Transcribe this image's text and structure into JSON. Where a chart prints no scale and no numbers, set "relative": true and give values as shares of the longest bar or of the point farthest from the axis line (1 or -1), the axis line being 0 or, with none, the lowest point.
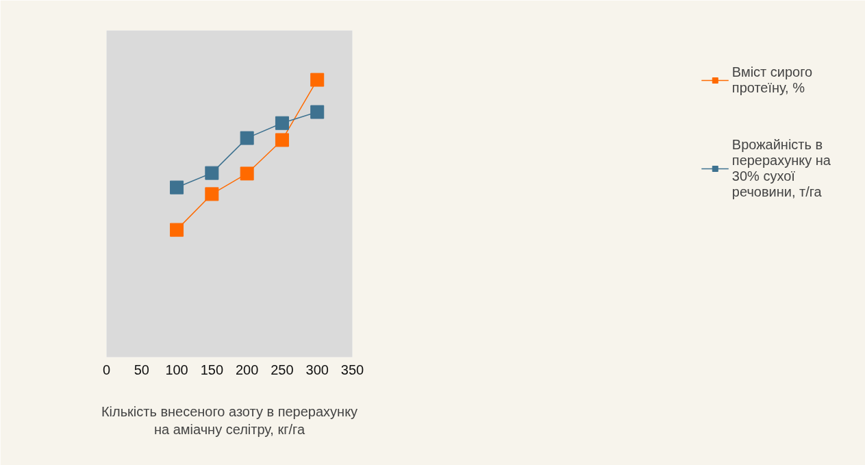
{
  "chart_data": {
    "type": "line",
    "relative": true,
    "xlabel": "Кількість внесеного азоту в перерахунку на аміачну селітру, кг/га",
    "x": [
      100,
      150,
      200,
      250,
      300
    ],
    "xlim": [
      0,
      350
    ],
    "xticks": [
      0,
      50,
      100,
      150,
      200,
      250,
      300,
      350
    ],
    "grid": false,
    "legend": "right",
    "marker": "square",
    "line_style": "solid",
    "series": [
      {
        "name": "Вміст сирого протеїну, %",
        "color": "#ff6a00",
        "values": [
          0.459,
          0.588,
          0.662,
          0.783,
          1
        ]
      },
      {
        "name": "Врожайність в перерахунку на 30% сухої речовини, т/га",
        "color": "#3e7290",
        "values": [
          0.612,
          0.664,
          0.79,
          0.844,
          0.884
        ]
      }
    ]
  }
}
